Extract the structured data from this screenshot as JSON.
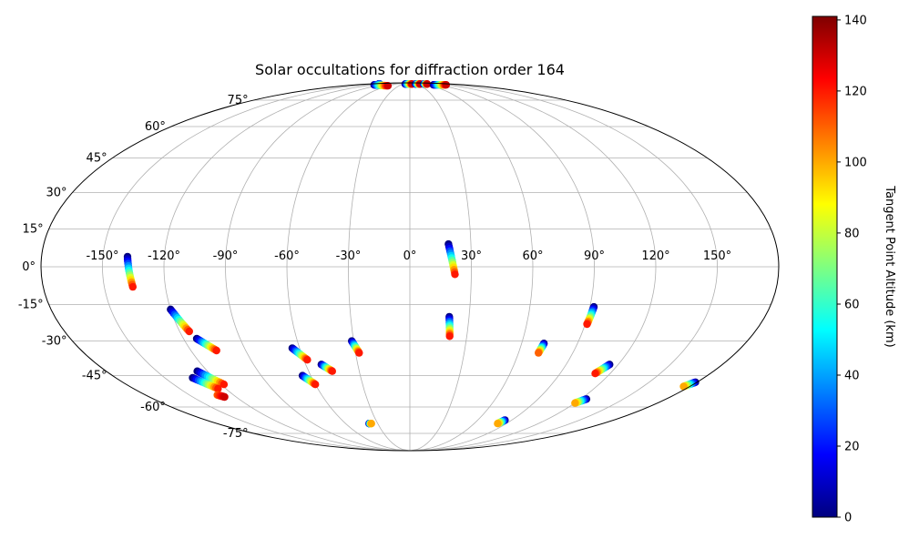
{
  "chart_data": {
    "type": "scatter",
    "projection": "mollweide",
    "title": "Solar occultations for diffraction order 164",
    "grid": true,
    "lon_ticks": [
      "-150°",
      "-120°",
      "-90°",
      "-60°",
      "-30°",
      "0°",
      "30°",
      "60°",
      "90°",
      "120°",
      "150°"
    ],
    "lat_ticks": [
      "75°",
      "60°",
      "45°",
      "30°",
      "15°",
      "0°",
      "-15°",
      "-30°",
      "-45°",
      "-60°",
      "-75°"
    ],
    "colorbar": {
      "label": "Tangent Point Altitude (km)",
      "min": 0,
      "max": 141,
      "ticks": [
        "0",
        "20",
        "40",
        "60",
        "80",
        "100",
        "120",
        "140"
      ],
      "colormap": "jet"
    },
    "tracks": [
      {
        "start": [
          -138,
          4
        ],
        "end": [
          -136,
          -8
        ],
        "alt_range": [
          0,
          120
        ]
      },
      {
        "start": [
          -120,
          -17
        ],
        "end": [
          -115,
          -26
        ],
        "alt_range": [
          0,
          120
        ]
      },
      {
        "start": [
          -113,
          -29
        ],
        "end": [
          -106,
          -34
        ],
        "alt_range": [
          0,
          120
        ]
      },
      {
        "start": [
          -126,
          -43
        ],
        "end": [
          -118,
          -49
        ],
        "alt_range": [
          0,
          120
        ]
      },
      {
        "start": [
          -133,
          -46
        ],
        "end": [
          -125,
          -51
        ],
        "alt_range": [
          0,
          120
        ]
      },
      {
        "start": [
          -131,
          -54
        ],
        "end": [
          -128,
          -55
        ],
        "alt_range": [
          110,
          130
        ]
      },
      {
        "start": [
          -64,
          -33
        ],
        "end": [
          -58,
          -38
        ],
        "alt_range": [
          0,
          120
        ]
      },
      {
        "start": [
          -65,
          -45
        ],
        "end": [
          -60,
          -49
        ],
        "alt_range": [
          0,
          120
        ]
      },
      {
        "start": [
          -51,
          -40
        ],
        "end": [
          -46,
          -43
        ],
        "alt_range": [
          0,
          120
        ]
      },
      {
        "start": [
          -31,
          -30
        ],
        "end": [
          -28,
          -35
        ],
        "alt_range": [
          0,
          120
        ]
      },
      {
        "start": [
          -38,
          -69
        ],
        "end": [
          -36,
          -69
        ],
        "alt_range": [
          0,
          100
        ]
      },
      {
        "start": [
          19,
          9
        ],
        "end": [
          22,
          -3
        ],
        "alt_range": [
          0,
          120
        ]
      },
      {
        "start": [
          20,
          -20
        ],
        "end": [
          21,
          -28
        ],
        "alt_range": [
          0,
          120
        ]
      },
      {
        "start": [
          72,
          -31
        ],
        "end": [
          71,
          -35
        ],
        "alt_range": [
          0,
          110
        ]
      },
      {
        "start": [
          92,
          -16
        ],
        "end": [
          91,
          -23
        ],
        "alt_range": [
          0,
          120
        ]
      },
      {
        "start": [
          115,
          -40
        ],
        "end": [
          111,
          -44
        ],
        "alt_range": [
          0,
          120
        ]
      },
      {
        "start": [
          124,
          -56
        ],
        "end": [
          120,
          -58
        ],
        "alt_range": [
          0,
          100
        ]
      },
      {
        "start": [
          84,
          -67
        ],
        "end": [
          82,
          -69
        ],
        "alt_range": [
          0,
          100
        ]
      },
      {
        "start": [
          179,
          -48
        ],
        "end": [
          176,
          -50
        ],
        "alt_range": [
          0,
          100
        ]
      },
      {
        "start": [
          -135,
          88
        ],
        "end": [
          -130,
          88
        ],
        "alt_range": [
          0,
          30
        ]
      },
      {
        "start": [
          -118,
          87
        ],
        "end": [
          -60,
          86
        ],
        "alt_range": [
          0,
          130
        ]
      },
      {
        "start": [
          -20,
          88
        ],
        "end": [
          10,
          88
        ],
        "alt_range": [
          0,
          130
        ]
      },
      {
        "start": [
          25,
          88
        ],
        "end": [
          45,
          88
        ],
        "alt_range": [
          0,
          130
        ]
      },
      {
        "start": [
          60,
          88
        ],
        "end": [
          75,
          88
        ],
        "alt_range": [
          0,
          130
        ]
      },
      {
        "start": [
          78,
          87
        ],
        "end": [
          120,
          87
        ],
        "alt_range": [
          0,
          130
        ]
      }
    ]
  }
}
